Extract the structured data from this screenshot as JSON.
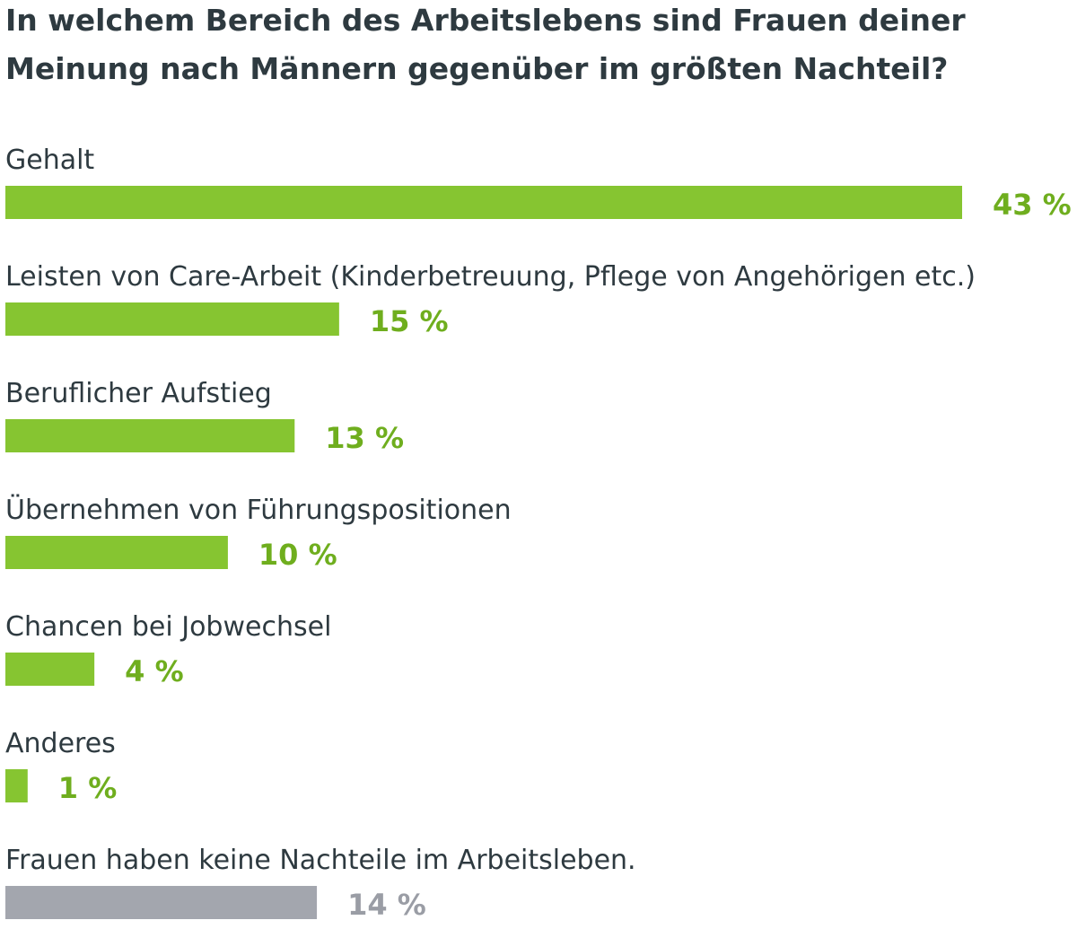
{
  "chart_data": {
    "type": "bar",
    "orientation": "horizontal",
    "title_lines": [
      "In welchem Bereich des Arbeitslebens sind Frauen deiner",
      "Meinung nach Männern gegenüber im größten Nachteil?"
    ],
    "categories": [
      "Gehalt",
      "Leisten von Care-Arbeit (Kinderbetreuung, Pflege von Angehörigen etc.)",
      "Beruflicher Aufstieg",
      "Übernehmen von Führungspositionen",
      "Chancen bei Jobwechsel",
      "Anderes",
      "Frauen haben keine Nachteile im Arbeitsleben."
    ],
    "values": [
      43,
      15,
      13,
      10,
      4,
      1,
      14
    ],
    "value_labels": [
      "43 %",
      "15 %",
      "13 %",
      "10 %",
      "4 %",
      "1 %",
      "14 %"
    ],
    "bar_colors": [
      "#86c531",
      "#86c531",
      "#86c531",
      "#86c531",
      "#86c531",
      "#86c531",
      "#a3a6ae"
    ],
    "value_label_colors": [
      "#6fae1e",
      "#6fae1e",
      "#6fae1e",
      "#6fae1e",
      "#6fae1e",
      "#6fae1e",
      "#9a9da5"
    ],
    "unit": "%",
    "xlim": [
      0,
      43
    ],
    "grid": false,
    "legend": "none"
  }
}
